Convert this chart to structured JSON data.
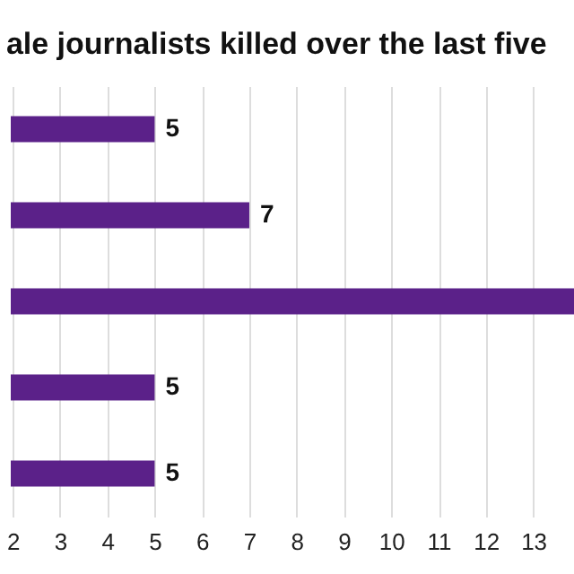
{
  "chart_data": {
    "type": "bar",
    "orientation": "horizontal",
    "title": "ale journalists killed over the last five",
    "categories": [
      null,
      null,
      null,
      null,
      null
    ],
    "values": [
      5,
      7,
      13.86,
      5,
      5
    ],
    "value_labels": [
      "5",
      "7",
      null,
      "5",
      "5"
    ],
    "color": "#5b2189",
    "xlim": [
      1.96,
      13.86
    ],
    "xticks": [
      2,
      3,
      4,
      5,
      6,
      7,
      8,
      9,
      10,
      11,
      12,
      13
    ],
    "grid": "x"
  }
}
